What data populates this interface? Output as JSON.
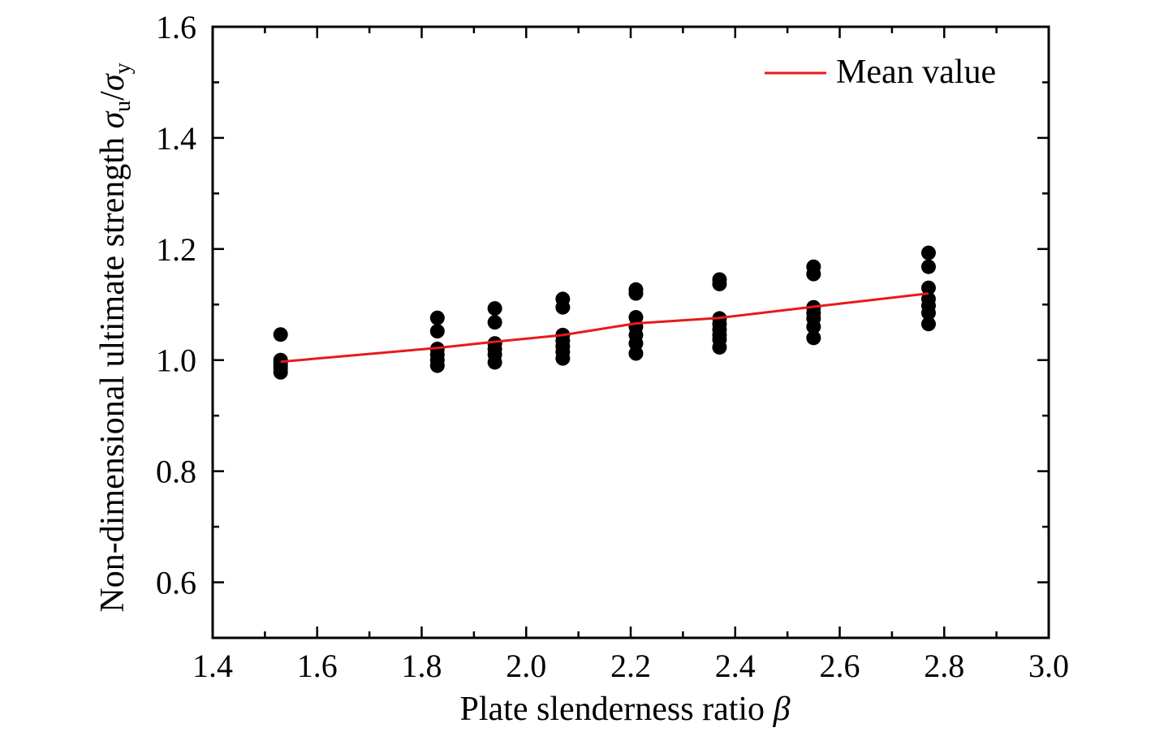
{
  "chart_data": {
    "type": "scatter",
    "xlabel": "Plate slenderness ratio β",
    "xlabel_parts": {
      "text": "Plate slenderness ratio ",
      "symbol": "β"
    },
    "ylabel": "Non-dimensional ultimate strength σu/σy",
    "ylabel_parts": {
      "text": "Non-dimensional ultimate strength ",
      "sym1": "σ",
      "sub1": "u",
      "slash": "/",
      "sym2": "σ",
      "sub2": "y"
    },
    "xlim": [
      1.4,
      3.0
    ],
    "ylim": [
      0.5,
      1.6
    ],
    "x_ticks": [
      "1.4",
      "1.6",
      "1.8",
      "2.0",
      "2.2",
      "2.4",
      "2.6",
      "2.8",
      "3.0"
    ],
    "y_ticks": [
      "0.6",
      "0.8",
      "1.0",
      "1.2",
      "1.4",
      "1.6"
    ],
    "grid": false,
    "legend_position": "top-right",
    "series": [
      {
        "kind": "points",
        "color": "#000000",
        "points": [
          [
            1.53,
            1.046
          ],
          [
            1.53,
            1.0
          ],
          [
            1.53,
            0.995
          ],
          [
            1.53,
            0.99
          ],
          [
            1.53,
            0.985
          ],
          [
            1.53,
            0.978
          ],
          [
            1.83,
            1.076
          ],
          [
            1.83,
            1.052
          ],
          [
            1.83,
            1.02
          ],
          [
            1.83,
            1.01
          ],
          [
            1.83,
            1.0
          ],
          [
            1.83,
            0.99
          ],
          [
            1.94,
            1.093
          ],
          [
            1.94,
            1.068
          ],
          [
            1.94,
            1.03
          ],
          [
            1.94,
            1.02
          ],
          [
            1.94,
            1.01
          ],
          [
            1.94,
            0.996
          ],
          [
            2.07,
            1.11
          ],
          [
            2.07,
            1.095
          ],
          [
            2.07,
            1.045
          ],
          [
            2.07,
            1.035
          ],
          [
            2.07,
            1.025
          ],
          [
            2.07,
            1.015
          ],
          [
            2.07,
            1.003
          ],
          [
            2.21,
            1.127
          ],
          [
            2.21,
            1.12
          ],
          [
            2.21,
            1.077
          ],
          [
            2.21,
            1.06
          ],
          [
            2.21,
            1.045
          ],
          [
            2.21,
            1.03
          ],
          [
            2.21,
            1.012
          ],
          [
            2.37,
            1.145
          ],
          [
            2.37,
            1.137
          ],
          [
            2.37,
            1.075
          ],
          [
            2.37,
            1.065
          ],
          [
            2.37,
            1.055
          ],
          [
            2.37,
            1.045
          ],
          [
            2.37,
            1.037
          ],
          [
            2.37,
            1.023
          ],
          [
            2.55,
            1.168
          ],
          [
            2.55,
            1.155
          ],
          [
            2.55,
            1.095
          ],
          [
            2.55,
            1.085
          ],
          [
            2.55,
            1.075
          ],
          [
            2.55,
            1.06
          ],
          [
            2.55,
            1.04
          ],
          [
            2.77,
            1.193
          ],
          [
            2.77,
            1.168
          ],
          [
            2.77,
            1.13
          ],
          [
            2.77,
            1.11
          ],
          [
            2.77,
            1.098
          ],
          [
            2.77,
            1.085
          ],
          [
            2.77,
            1.065
          ]
        ]
      },
      {
        "kind": "line",
        "name": "Mean value",
        "color": "#e8191b",
        "points": [
          [
            1.53,
            0.997
          ],
          [
            1.83,
            1.022
          ],
          [
            1.94,
            1.033
          ],
          [
            2.07,
            1.045
          ],
          [
            2.21,
            1.066
          ],
          [
            2.37,
            1.076
          ],
          [
            2.55,
            1.096
          ],
          [
            2.77,
            1.12
          ]
        ]
      }
    ]
  }
}
